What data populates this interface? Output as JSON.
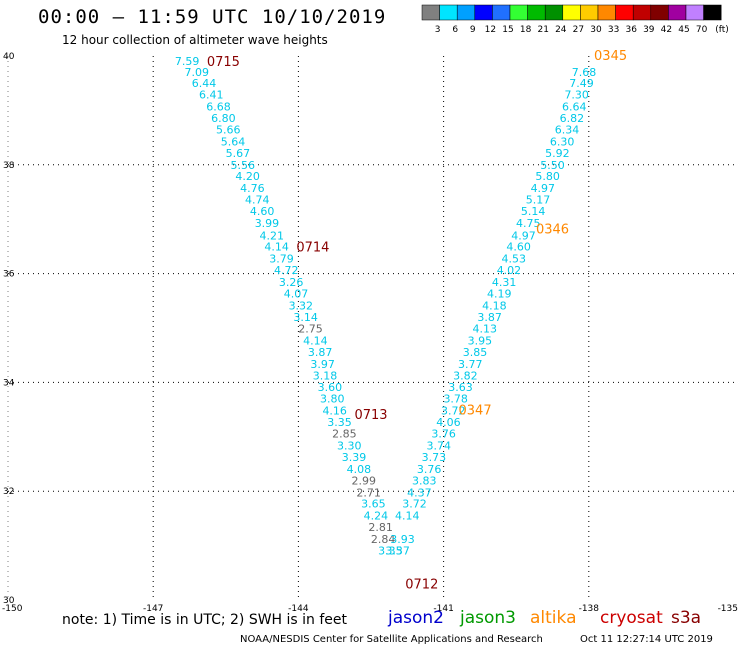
{
  "title": "00:00 – 11:59 UTC 10/10/2019",
  "subtitle": "12 hour collection of altimeter wave heights",
  "note": "note:  1) Time is in UTC;  2) SWH is in feet",
  "credit": "NOAA/NESDIS Center for Satellite Applications and Research",
  "credit_date": "Oct 11 12:27:14 UTC 2019",
  "legend": {
    "unit": "(ft)",
    "bins": [
      {
        "label": "3",
        "color": "#808080"
      },
      {
        "label": "6",
        "color": "#00e5ff"
      },
      {
        "label": "9",
        "color": "#00a0ff"
      },
      {
        "label": "12",
        "color": "#0000ff"
      },
      {
        "label": "15",
        "color": "#2070ff"
      },
      {
        "label": "18",
        "color": "#33ff33"
      },
      {
        "label": "21",
        "color": "#00bb00"
      },
      {
        "label": "24",
        "color": "#009000"
      },
      {
        "label": "27",
        "color": "#ffff00"
      },
      {
        "label": "30",
        "color": "#ffcc00"
      },
      {
        "label": "33",
        "color": "#ff8800"
      },
      {
        "label": "36",
        "color": "#ff0000"
      },
      {
        "label": "39",
        "color": "#c00000"
      },
      {
        "label": "42",
        "color": "#800000"
      },
      {
        "label": "45",
        "color": "#a000a0"
      },
      {
        "label": "70",
        "color": "#c080ff"
      },
      {
        "label": "",
        "color": "#000000"
      }
    ]
  },
  "satellites": [
    {
      "name": "jason2",
      "color": "#0000cc"
    },
    {
      "name": "jason3",
      "color": "#009900"
    },
    {
      "name": "altika",
      "color": "#ff8800"
    },
    {
      "name": "cryosat",
      "color": "#cc0000"
    },
    {
      "name": "s3a",
      "color": "#880000"
    }
  ],
  "map": {
    "lon_range": [
      -150,
      -135
    ],
    "lat_range": [
      30,
      40
    ],
    "lon_ticks": [
      "-150",
      "-147",
      "-144",
      "-141",
      "-138",
      "-135"
    ],
    "lat_ticks": [
      "40",
      "38",
      "36",
      "34",
      "32",
      "30"
    ],
    "colors": {
      "cyan": "#00c8e8",
      "gray": "#666666",
      "s3a": "#880000",
      "altika": "#ff8800"
    }
  },
  "tracks": [
    {
      "name": "s3a descending track",
      "points": [
        {
          "lon": -146.3,
          "lat": 39.91,
          "v": "7.59",
          "c": "cyan"
        },
        {
          "lon": -146.1,
          "lat": 39.71,
          "v": "7.09",
          "c": "cyan"
        },
        {
          "lon": -145.95,
          "lat": 39.5,
          "v": "6.44",
          "c": "cyan"
        },
        {
          "lon": -145.8,
          "lat": 39.29,
          "v": "6.41",
          "c": "cyan"
        },
        {
          "lon": -145.65,
          "lat": 39.07,
          "v": "6.68",
          "c": "cyan"
        },
        {
          "lon": -145.55,
          "lat": 38.86,
          "v": "6.80",
          "c": "cyan"
        },
        {
          "lon": -145.45,
          "lat": 38.65,
          "v": "5.66",
          "c": "cyan"
        },
        {
          "lon": -145.35,
          "lat": 38.43,
          "v": "5.64",
          "c": "cyan"
        },
        {
          "lon": -145.25,
          "lat": 38.22,
          "v": "5.67",
          "c": "cyan"
        },
        {
          "lon": -145.15,
          "lat": 38.0,
          "v": "5.56",
          "c": "cyan"
        },
        {
          "lon": -145.05,
          "lat": 37.79,
          "v": "4.20",
          "c": "cyan"
        },
        {
          "lon": -144.95,
          "lat": 37.57,
          "v": "4.76",
          "c": "cyan"
        },
        {
          "lon": -144.85,
          "lat": 37.36,
          "v": "4.74",
          "c": "cyan"
        },
        {
          "lon": -144.75,
          "lat": 37.15,
          "v": "4.60",
          "c": "cyan"
        },
        {
          "lon": -144.65,
          "lat": 36.93,
          "v": "3.99",
          "c": "cyan"
        },
        {
          "lon": -144.55,
          "lat": 36.7,
          "v": "4.21",
          "c": "cyan"
        },
        {
          "lon": -144.45,
          "lat": 36.5,
          "v": "4.14",
          "c": "cyan"
        },
        {
          "lon": -144.35,
          "lat": 36.28,
          "v": "3.79",
          "c": "cyan"
        },
        {
          "lon": -144.25,
          "lat": 36.07,
          "v": "4.72",
          "c": "cyan"
        },
        {
          "lon": -144.15,
          "lat": 35.85,
          "v": "3.26",
          "c": "cyan"
        },
        {
          "lon": -144.05,
          "lat": 35.63,
          "v": "4.07",
          "c": "cyan"
        },
        {
          "lon": -143.95,
          "lat": 35.41,
          "v": "3.32",
          "c": "cyan"
        },
        {
          "lon": -143.85,
          "lat": 35.2,
          "v": "3.14",
          "c": "cyan"
        },
        {
          "lon": -143.75,
          "lat": 34.99,
          "v": "2.75",
          "c": "gray"
        },
        {
          "lon": -143.65,
          "lat": 34.77,
          "v": "4.14",
          "c": "cyan"
        },
        {
          "lon": -143.55,
          "lat": 34.56,
          "v": "3.87",
          "c": "cyan"
        },
        {
          "lon": -143.5,
          "lat": 34.34,
          "v": "3.97",
          "c": "cyan"
        },
        {
          "lon": -143.45,
          "lat": 34.13,
          "v": "3.18",
          "c": "cyan"
        },
        {
          "lon": -143.35,
          "lat": 33.92,
          "v": "3.60",
          "c": "cyan"
        },
        {
          "lon": -143.3,
          "lat": 33.7,
          "v": "3.80",
          "c": "cyan"
        },
        {
          "lon": -143.25,
          "lat": 33.48,
          "v": "4.16",
          "c": "cyan"
        },
        {
          "lon": -143.15,
          "lat": 33.27,
          "v": "3.35",
          "c": "cyan"
        },
        {
          "lon": -143.05,
          "lat": 33.06,
          "v": "2.85",
          "c": "gray"
        },
        {
          "lon": -142.95,
          "lat": 32.84,
          "v": "3.30",
          "c": "cyan"
        },
        {
          "lon": -142.85,
          "lat": 32.63,
          "v": "3.39",
          "c": "cyan"
        },
        {
          "lon": -142.75,
          "lat": 32.41,
          "v": "4.08",
          "c": "cyan"
        },
        {
          "lon": -142.65,
          "lat": 32.2,
          "v": "2.99",
          "c": "gray"
        },
        {
          "lon": -142.55,
          "lat": 31.98,
          "v": "2.71",
          "c": "gray"
        },
        {
          "lon": -142.45,
          "lat": 31.77,
          "v": "3.65",
          "c": "cyan"
        },
        {
          "lon": -142.4,
          "lat": 31.55,
          "v": "4.24",
          "c": "cyan"
        },
        {
          "lon": -142.3,
          "lat": 31.34,
          "v": "2.81",
          "c": "gray"
        },
        {
          "lon": -142.25,
          "lat": 31.12,
          "v": "2.84",
          "c": "gray"
        },
        {
          "lon": -142.1,
          "lat": 30.91,
          "v": "3.35",
          "c": "cyan"
        }
      ]
    },
    {
      "name": "altika ascending track",
      "points": [
        {
          "lon": -141.95,
          "lat": 30.91,
          "v": "3.37",
          "c": "cyan"
        },
        {
          "lon": -141.85,
          "lat": 31.12,
          "v": "3.93",
          "c": "cyan"
        },
        {
          "lon": -141.75,
          "lat": 31.55,
          "v": "4.14",
          "c": "cyan"
        },
        {
          "lon": -141.6,
          "lat": 31.77,
          "v": "3.72",
          "c": "cyan"
        },
        {
          "lon": -141.5,
          "lat": 31.98,
          "v": "4.37",
          "c": "cyan"
        },
        {
          "lon": -141.4,
          "lat": 32.2,
          "v": "3.83",
          "c": "cyan"
        },
        {
          "lon": -141.3,
          "lat": 32.41,
          "v": "3.76",
          "c": "cyan"
        },
        {
          "lon": -141.2,
          "lat": 32.63,
          "v": "3.73",
          "c": "cyan"
        },
        {
          "lon": -141.1,
          "lat": 32.84,
          "v": "3.74",
          "c": "cyan"
        },
        {
          "lon": -141.0,
          "lat": 33.06,
          "v": "3.76",
          "c": "cyan"
        },
        {
          "lon": -140.9,
          "lat": 33.27,
          "v": "4.06",
          "c": "cyan"
        },
        {
          "lon": -140.8,
          "lat": 33.48,
          "v": "3.72",
          "c": "cyan"
        },
        {
          "lon": -140.75,
          "lat": 33.7,
          "v": "3.78",
          "c": "cyan"
        },
        {
          "lon": -140.65,
          "lat": 33.92,
          "v": "3.63",
          "c": "cyan"
        },
        {
          "lon": -140.55,
          "lat": 34.13,
          "v": "3.82",
          "c": "cyan"
        },
        {
          "lon": -140.45,
          "lat": 34.34,
          "v": "3.77",
          "c": "cyan"
        },
        {
          "lon": -140.35,
          "lat": 34.56,
          "v": "3.85",
          "c": "cyan"
        },
        {
          "lon": -140.25,
          "lat": 34.77,
          "v": "3.95",
          "c": "cyan"
        },
        {
          "lon": -140.15,
          "lat": 34.99,
          "v": "4.13",
          "c": "cyan"
        },
        {
          "lon": -140.05,
          "lat": 35.2,
          "v": "3.87",
          "c": "cyan"
        },
        {
          "lon": -139.95,
          "lat": 35.41,
          "v": "4.18",
          "c": "cyan"
        },
        {
          "lon": -139.85,
          "lat": 35.63,
          "v": "4.19",
          "c": "cyan"
        },
        {
          "lon": -139.75,
          "lat": 35.85,
          "v": "4.31",
          "c": "cyan"
        },
        {
          "lon": -139.65,
          "lat": 36.07,
          "v": "4.02",
          "c": "cyan"
        },
        {
          "lon": -139.55,
          "lat": 36.28,
          "v": "4.53",
          "c": "cyan"
        },
        {
          "lon": -139.45,
          "lat": 36.5,
          "v": "4.60",
          "c": "cyan"
        },
        {
          "lon": -139.35,
          "lat": 36.7,
          "v": "4.97",
          "c": "cyan"
        },
        {
          "lon": -139.25,
          "lat": 36.93,
          "v": "4.75",
          "c": "cyan"
        },
        {
          "lon": -139.15,
          "lat": 37.15,
          "v": "5.14",
          "c": "cyan"
        },
        {
          "lon": -139.05,
          "lat": 37.36,
          "v": "5.17",
          "c": "cyan"
        },
        {
          "lon": -138.95,
          "lat": 37.57,
          "v": "4.97",
          "c": "cyan"
        },
        {
          "lon": -138.85,
          "lat": 37.79,
          "v": "5.80",
          "c": "cyan"
        },
        {
          "lon": -138.75,
          "lat": 38.0,
          "v": "5.50",
          "c": "cyan"
        },
        {
          "lon": -138.65,
          "lat": 38.22,
          "v": "5.92",
          "c": "cyan"
        },
        {
          "lon": -138.55,
          "lat": 38.43,
          "v": "6.30",
          "c": "cyan"
        },
        {
          "lon": -138.45,
          "lat": 38.65,
          "v": "6.34",
          "c": "cyan"
        },
        {
          "lon": -138.35,
          "lat": 38.86,
          "v": "6.82",
          "c": "cyan"
        },
        {
          "lon": -138.3,
          "lat": 39.07,
          "v": "6.64",
          "c": "cyan"
        },
        {
          "lon": -138.25,
          "lat": 39.29,
          "v": "7.30",
          "c": "cyan"
        },
        {
          "lon": -138.15,
          "lat": 39.5,
          "v": "7.49",
          "c": "cyan"
        },
        {
          "lon": -138.1,
          "lat": 39.71,
          "v": "7.68",
          "c": "cyan"
        }
      ]
    }
  ],
  "time_labels": [
    {
      "lon": -145.55,
      "lat": 39.91,
      "text": "0715",
      "c": "s3a"
    },
    {
      "lon": -143.7,
      "lat": 36.5,
      "text": "0714",
      "c": "s3a"
    },
    {
      "lon": -142.5,
      "lat": 33.42,
      "text": "0713",
      "c": "s3a"
    },
    {
      "lon": -141.45,
      "lat": 30.3,
      "text": "0712",
      "c": "s3a"
    },
    {
      "lon": -137.55,
      "lat": 40.02,
      "text": "0345",
      "c": "altika"
    },
    {
      "lon": -138.75,
      "lat": 36.83,
      "text": "0346",
      "c": "altika"
    },
    {
      "lon": -140.35,
      "lat": 33.5,
      "text": "0347",
      "c": "altika"
    }
  ]
}
